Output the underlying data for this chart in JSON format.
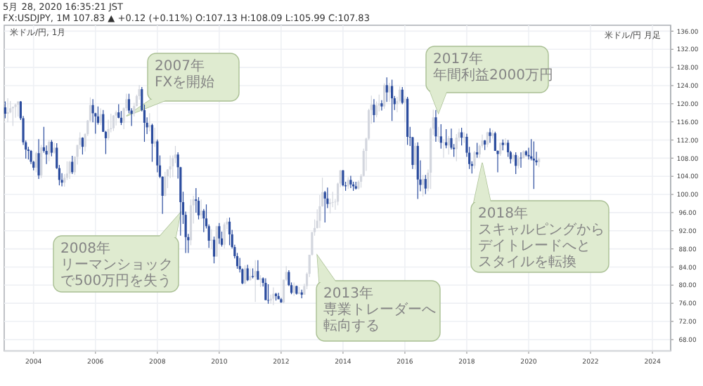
{
  "chart_data": {
    "type": "candlestick",
    "title": "FX:USDJPY, 1M 107.83 ▲ +0.12 (+0.11%) O:107.13 H:108.09 L:105.99 C:107.83",
    "subtitle": "5月 28, 2020 16:35:21 JST",
    "colors": [
      "#2b4c9e",
      "#d3d6de",
      "#d3d6de",
      "#d3d6de",
      "#d3d6de",
      "#d3d6de",
      "#2b4c9e",
      "#2b4c9e",
      "#2b4c9e",
      "#2b4c9e",
      "#2b4c9e",
      "#2b4c9e",
      "#d3d6de",
      "#2b4c9e",
      "#d3d6de",
      "#2b4c9e",
      "#2b4c9e",
      "#d3d6de",
      "#2b4c9e",
      "#d3d6de",
      "#2b4c9e",
      "#2b4c9e",
      "#2b4c9e",
      "#d3d6de",
      "#d3d6de",
      "#d3d6de",
      "#2b4c9e",
      "#d3d6de",
      "#d3d6de",
      "#d3d6de",
      "#2b4c9e",
      "#d3d6de",
      "#d3d6de",
      "#d3d6de",
      "#2b4c9e",
      "#2b4c9e",
      "#2b4c9e",
      "#d3d6de",
      "#2b4c9e",
      "#2b4c9e",
      "#d3d6de",
      "#d3d6de",
      "#d3d6de",
      "#d3d6de",
      "#2b4c9e",
      "#2b4c9e",
      "#d3d6de",
      "#d3d6de",
      "#2b4c9e",
      "#2b4c9e",
      "#d3d6de",
      "#d3d6de",
      "#d3d6de",
      "#2b4c9e",
      "#2b4c9e",
      "#2b4c9e",
      "#d3d6de",
      "#2b4c9e",
      "#d3d6de",
      "#2b4c9e",
      "#2b4c9e",
      "#2b4c9e",
      "#d3d6de",
      "#d3d6de",
      "#d3d6de",
      "#d3d6de",
      "#d3d6de",
      "#2b4c9e",
      "#2b4c9e",
      "#2b4c9e",
      "#2b4c9e",
      "#2b4c9e",
      "#d3d6de",
      "#d3d6de",
      "#2b4c9e",
      "#2b4c9e",
      "#d3d6de",
      "#2b4c9e",
      "#2b4c9e",
      "#2b4c9e",
      "#d3d6de",
      "#2b4c9e",
      "#d3d6de",
      "#2b4c9e",
      "#2b4c9e",
      "#d3d6de",
      "#d3d6de",
      "#2b4c9e",
      "#2b4c9e",
      "#2b4c9e",
      "#2b4c9e",
      "#2b4c9e",
      "#2b4c9e",
      "#d3d6de",
      "#2b4c9e",
      "#d3d6de",
      "#2b4c9e",
      "#d3d6de",
      "#2b4c9e",
      "#d3d6de",
      "#2b4c9e",
      "#2b4c9e",
      "#2b4c9e",
      "#d3d6de",
      "#d3d6de",
      "#2b4c9e",
      "#2b4c9e",
      "#2b4c9e",
      "#d3d6de",
      "#d3d6de",
      "#2b4c9e",
      "#2b4c9e",
      "#d3d6de",
      "#2b4c9e",
      "#d3d6de",
      "#2b4c9e",
      "#d3d6de",
      "#d3d6de",
      "#d3d6de",
      "#d3d6de",
      "#d3d6de",
      "#d3d6de",
      "#d3d6de",
      "#d3d6de",
      "#2b4c9e",
      "#2b4c9e",
      "#d3d6de",
      "#d3d6de",
      "#d3d6de",
      "#d3d6de",
      "#d3d6de",
      "#2b4c9e",
      "#2b4c9e",
      "#d3d6de",
      "#2b4c9e",
      "#2b4c9e",
      "#2b4c9e",
      "#d3d6de",
      "#d3d6de",
      "#d3d6de",
      "#d3d6de",
      "#d3d6de",
      "#d3d6de",
      "#2b4c9e",
      "#d3d6de",
      "#d3d6de",
      "#2b4c9e",
      "#d3d6de",
      "#2b4c9e",
      "#d3d6de",
      "#2b4c9e",
      "#2b4c9e",
      "#d3d6de",
      "#d3d6de",
      "#2b4c9e",
      "#d3d6de",
      "#2b4c9e",
      "#2b4c9e",
      "#2b4c9e",
      "#d3d6de",
      "#2b4c9e",
      "#2b4c9e",
      "#d3d6de",
      "#2b4c9e",
      "#d3d6de",
      "#d3d6de",
      "#d3d6de",
      "#2b4c9e",
      "#d3d6de",
      "#2b4c9e",
      "#d3d6de",
      "#2b4c9e",
      "#d3d6de",
      "#2b4c9e",
      "#2b4c9e",
      "#d3d6de",
      "#d3d6de",
      "#2b4c9e",
      "#d3d6de",
      "#2b4c9e",
      "#2b4c9e",
      "#2b4c9e",
      "#d3d6de",
      "#2b4c9e",
      "#d3d6de",
      "#d3d6de",
      "#2b4c9e",
      "#d3d6de",
      "#2b4c9e",
      "#d3d6de",
      "#2b4c9e",
      "#2b4c9e",
      "#d3d6de",
      "#2b4c9e",
      "#d3d6de",
      "#2b4c9e",
      "#2b4c9e",
      "#d3d6de",
      "#2b4c9e",
      "#d3d6de",
      "#2b4c9e",
      "#d3d6de",
      "#2b4c9e",
      "#2b4c9e",
      "#2b4c9e",
      "#2b4c9e",
      "#2b4c9e",
      "#d3d6de"
    ],
    "grid": true,
    "xlim": [
      "2003-01-20",
      "2024-08-03"
    ],
    "ylim": [
      65.5,
      137.3
    ],
    "xticks": [
      "2004",
      "2006",
      "2008",
      "2010",
      "2012",
      "2014",
      "2016",
      "2018",
      "2020",
      "2022",
      "2024"
    ],
    "yticks": [
      {
        "value": 68,
        "label": "68.00"
      },
      {
        "value": 72,
        "label": "72.00"
      },
      {
        "value": 76,
        "label": "76.00"
      },
      {
        "value": 80,
        "label": "80.00"
      },
      {
        "value": 84,
        "label": "84.00"
      },
      {
        "value": 88,
        "label": "88.00"
      },
      {
        "value": 92,
        "label": "92.00"
      },
      {
        "value": 96,
        "label": "96.00"
      },
      {
        "value": 100,
        "label": "100.00"
      },
      {
        "value": 104,
        "label": "104.00"
      },
      {
        "value": 108,
        "label": "108.00"
      },
      {
        "value": 112,
        "label": "112.00"
      },
      {
        "value": 116,
        "label": "116.00"
      },
      {
        "value": 120,
        "label": "120.00"
      },
      {
        "value": 124,
        "label": "124.00"
      },
      {
        "value": 128,
        "label": "128.00"
      },
      {
        "value": 132,
        "label": "132.00"
      },
      {
        "value": 136,
        "label": "136.00"
      }
    ],
    "annotations": [
      "米ドル/円, 1月",
      "米ドル/円 月足",
      {
        "text": "2007年FXを開始",
        "x": "2007-01",
        "y": 117.3
      },
      {
        "text": "2008年リーマンショックで500万円を失う",
        "x": "2008-10",
        "y": 96
      },
      {
        "text": "2013年専業トレーダーへ転向する",
        "x": "2013-03",
        "y": 86.6
      },
      {
        "text": "2017年年間利益2000万円",
        "x": "2017-02",
        "y": 117.9
      },
      {
        "text": "2018年スキャルピングからデイトレードへとスタイルを転換",
        "x": "2018-07",
        "y": 107
      }
    ],
    "x": [
      "2003-02",
      "2003-03",
      "2003-04",
      "2003-05",
      "2003-06",
      "2003-07",
      "2003-08",
      "2003-09",
      "2003-10",
      "2003-11",
      "2003-12",
      "2004-01",
      "2004-02",
      "2004-03",
      "2004-04",
      "2004-05",
      "2004-06",
      "2004-07",
      "2004-08",
      "2004-09",
      "2004-10",
      "2004-11",
      "2004-12",
      "2005-01",
      "2005-02",
      "2005-03",
      "2005-04",
      "2005-05",
      "2005-06",
      "2005-07",
      "2005-08",
      "2005-09",
      "2005-10",
      "2005-11",
      "2005-12",
      "2006-01",
      "2006-02",
      "2006-03",
      "2006-04",
      "2006-05",
      "2006-06",
      "2006-07",
      "2006-08",
      "2006-09",
      "2006-10",
      "2006-11",
      "2006-12",
      "2007-01",
      "2007-02",
      "2007-03",
      "2007-04",
      "2007-05",
      "2007-06",
      "2007-07",
      "2007-08",
      "2007-09",
      "2007-10",
      "2007-11",
      "2007-12",
      "2008-01",
      "2008-02",
      "2008-03",
      "2008-04",
      "2008-05",
      "2008-06",
      "2008-07",
      "2008-08",
      "2008-09",
      "2008-10",
      "2008-11",
      "2008-12",
      "2009-01",
      "2009-02",
      "2009-03",
      "2009-04",
      "2009-05",
      "2009-06",
      "2009-07",
      "2009-08",
      "2009-09",
      "2009-10",
      "2009-11",
      "2009-12",
      "2010-01",
      "2010-02",
      "2010-03",
      "2010-04",
      "2010-05",
      "2010-06",
      "2010-07",
      "2010-08",
      "2010-09",
      "2010-10",
      "2010-11",
      "2010-12",
      "2011-01",
      "2011-02",
      "2011-03",
      "2011-04",
      "2011-05",
      "2011-06",
      "2011-07",
      "2011-08",
      "2011-09",
      "2011-10",
      "2011-11",
      "2011-12",
      "2012-01",
      "2012-02",
      "2012-03",
      "2012-04",
      "2012-05",
      "2012-06",
      "2012-07",
      "2012-08",
      "2012-09",
      "2012-10",
      "2012-11",
      "2012-12",
      "2013-01",
      "2013-02",
      "2013-03",
      "2013-04",
      "2013-05",
      "2013-06",
      "2013-07",
      "2013-08",
      "2013-09",
      "2013-10",
      "2013-11",
      "2013-12",
      "2014-01",
      "2014-02",
      "2014-03",
      "2014-04",
      "2014-05",
      "2014-06",
      "2014-07",
      "2014-08",
      "2014-09",
      "2014-10",
      "2014-11",
      "2014-12",
      "2015-01",
      "2015-02",
      "2015-03",
      "2015-04",
      "2015-05",
      "2015-06",
      "2015-07",
      "2015-08",
      "2015-09",
      "2015-10",
      "2015-11",
      "2015-12",
      "2016-01",
      "2016-02",
      "2016-03",
      "2016-04",
      "2016-05",
      "2016-06",
      "2016-07",
      "2016-08",
      "2016-09",
      "2016-10",
      "2016-11",
      "2016-12",
      "2017-01",
      "2017-02",
      "2017-03",
      "2017-04",
      "2017-05",
      "2017-06",
      "2017-07",
      "2017-08",
      "2017-09",
      "2017-10",
      "2017-11",
      "2017-12",
      "2018-01",
      "2018-02",
      "2018-03",
      "2018-04",
      "2018-05",
      "2018-06",
      "2018-07",
      "2018-08",
      "2018-09",
      "2018-10",
      "2018-11",
      "2018-12",
      "2019-01",
      "2019-02",
      "2019-03",
      "2019-04",
      "2019-05",
      "2019-06",
      "2019-07",
      "2019-08",
      "2019-09",
      "2019-10",
      "2019-11",
      "2019-12",
      "2020-01",
      "2020-02",
      "2020-03",
      "2020-04",
      "2020-05"
    ],
    "ohlc": [
      [
        119.2,
        120.5,
        116.8,
        117.8
      ],
      [
        117.8,
        121.2,
        115.9,
        118.1
      ],
      [
        118.1,
        120.6,
        117.9,
        119.0
      ],
      [
        119.0,
        119.4,
        115.1,
        119.3
      ],
      [
        119.3,
        120.0,
        116.9,
        119.8
      ],
      [
        119.8,
        120.5,
        117.2,
        120.5
      ],
      [
        120.5,
        120.6,
        116.4,
        116.8
      ],
      [
        116.8,
        117.3,
        110.9,
        111.5
      ],
      [
        111.5,
        111.9,
        107.9,
        109.9
      ],
      [
        109.9,
        110.5,
        107.7,
        109.6
      ],
      [
        109.6,
        109.8,
        106.7,
        107.2
      ],
      [
        107.2,
        107.4,
        105.3,
        105.9
      ],
      [
        105.9,
        109.4,
        104.9,
        109.1
      ],
      [
        109.1,
        112.2,
        103.4,
        104.2
      ],
      [
        104.2,
        110.9,
        103.6,
        110.4
      ],
      [
        110.4,
        114.9,
        109.2,
        109.6
      ],
      [
        109.6,
        110.8,
        106.7,
        108.8
      ],
      [
        108.8,
        112.0,
        107.3,
        111.6
      ],
      [
        111.6,
        112.0,
        108.4,
        109.2
      ],
      [
        109.2,
        111.4,
        109.0,
        110.3
      ],
      [
        110.3,
        111.3,
        105.6,
        105.8
      ],
      [
        105.8,
        106.5,
        102.0,
        103.2
      ],
      [
        103.2,
        104.7,
        101.8,
        102.6
      ],
      [
        102.6,
        104.5,
        101.7,
        103.7
      ],
      [
        103.7,
        107.3,
        103.2,
        104.6
      ],
      [
        104.6,
        107.4,
        103.4,
        107.2
      ],
      [
        107.2,
        108.5,
        104.5,
        104.9
      ],
      [
        104.9,
        108.4,
        104.3,
        108.3
      ],
      [
        108.3,
        110.9,
        106.6,
        110.9
      ],
      [
        110.9,
        113.7,
        110.0,
        112.5
      ],
      [
        112.5,
        112.6,
        108.8,
        110.5
      ],
      [
        110.5,
        113.5,
        109.5,
        113.3
      ],
      [
        113.3,
        116.4,
        112.9,
        116.3
      ],
      [
        116.3,
        121.4,
        116.0,
        119.7
      ],
      [
        119.7,
        121.0,
        115.9,
        117.9
      ],
      [
        117.9,
        118.0,
        113.4,
        117.2
      ],
      [
        117.2,
        119.4,
        115.4,
        115.8
      ],
      [
        115.8,
        119.0,
        115.3,
        117.7
      ],
      [
        117.7,
        118.6,
        113.8,
        113.8
      ],
      [
        113.8,
        114.0,
        108.9,
        112.4
      ],
      [
        112.4,
        116.5,
        112.0,
        114.4
      ],
      [
        114.4,
        117.8,
        113.7,
        114.6
      ],
      [
        114.6,
        117.5,
        114.0,
        117.4
      ],
      [
        117.4,
        118.5,
        115.2,
        118.1
      ],
      [
        118.1,
        119.9,
        116.8,
        116.9
      ],
      [
        116.9,
        118.4,
        115.3,
        115.8
      ],
      [
        115.8,
        119.2,
        114.4,
        119.0
      ],
      [
        119.0,
        122.2,
        118.4,
        121.0
      ],
      [
        121.0,
        122.2,
        117.9,
        118.5
      ],
      [
        118.5,
        119.0,
        115.1,
        117.8
      ],
      [
        117.8,
        120.2,
        117.2,
        119.5
      ],
      [
        119.5,
        122.0,
        119.4,
        121.7
      ],
      [
        121.7,
        124.1,
        120.9,
        123.2
      ],
      [
        123.2,
        123.7,
        118.3,
        118.6
      ],
      [
        118.6,
        119.8,
        111.6,
        115.8
      ],
      [
        115.8,
        117.0,
        113.3,
        114.8
      ],
      [
        114.8,
        117.9,
        113.9,
        115.3
      ],
      [
        115.3,
        115.6,
        107.2,
        111.2
      ],
      [
        111.2,
        114.7,
        110.5,
        111.7
      ],
      [
        111.7,
        112.1,
        104.9,
        106.4
      ],
      [
        106.4,
        108.6,
        103.6,
        103.9
      ],
      [
        103.9,
        104.0,
        95.7,
        99.7
      ],
      [
        99.7,
        105.0,
        99.6,
        104.0
      ],
      [
        104.0,
        105.6,
        101.4,
        105.5
      ],
      [
        105.5,
        108.6,
        103.6,
        106.2
      ],
      [
        106.2,
        108.6,
        103.8,
        108.0
      ],
      [
        108.0,
        110.7,
        106.9,
        108.8
      ],
      [
        108.8,
        109.3,
        103.5,
        106.0
      ],
      [
        106.0,
        106.1,
        90.9,
        98.3
      ],
      [
        98.3,
        100.6,
        93.5,
        95.5
      ],
      [
        95.5,
        96.2,
        87.1,
        90.6
      ],
      [
        90.6,
        91.3,
        87.1,
        89.9
      ],
      [
        89.9,
        98.9,
        88.8,
        97.6
      ],
      [
        97.6,
        99.7,
        93.6,
        98.9
      ],
      [
        98.9,
        101.4,
        96.0,
        98.6
      ],
      [
        98.6,
        99.4,
        94.5,
        95.4
      ],
      [
        95.4,
        98.9,
        94.6,
        96.4
      ],
      [
        96.4,
        96.8,
        91.7,
        94.7
      ],
      [
        94.7,
        97.8,
        92.5,
        93.0
      ],
      [
        93.0,
        93.4,
        88.2,
        89.8
      ],
      [
        89.8,
        92.3,
        88.0,
        90.0
      ],
      [
        90.0,
        90.7,
        84.8,
        86.3
      ],
      [
        86.3,
        93.1,
        86.3,
        93.0
      ],
      [
        93.0,
        93.7,
        89.1,
        90.3
      ],
      [
        90.3,
        91.8,
        88.5,
        88.9
      ],
      [
        88.9,
        93.8,
        88.1,
        93.4
      ],
      [
        93.4,
        94.8,
        92.3,
        94.0
      ],
      [
        94.0,
        94.9,
        88.8,
        91.2
      ],
      [
        91.2,
        92.2,
        88.1,
        88.4
      ],
      [
        88.4,
        88.9,
        85.9,
        86.4
      ],
      [
        86.4,
        87.1,
        83.6,
        84.2
      ],
      [
        84.2,
        86.0,
        82.8,
        83.5
      ],
      [
        83.5,
        83.7,
        80.2,
        80.4
      ],
      [
        80.4,
        84.4,
        80.2,
        83.7
      ],
      [
        83.7,
        84.5,
        80.9,
        81.1
      ],
      [
        81.1,
        83.7,
        81.0,
        82.0
      ],
      [
        82.0,
        83.7,
        81.5,
        81.8
      ],
      [
        81.8,
        85.5,
        76.3,
        83.1
      ],
      [
        83.1,
        85.5,
        81.2,
        81.2
      ],
      [
        81.2,
        82.2,
        79.6,
        81.5
      ],
      [
        81.5,
        81.7,
        79.7,
        80.5
      ],
      [
        80.5,
        81.5,
        76.7,
        76.7
      ],
      [
        76.7,
        80.2,
        75.9,
        76.6
      ],
      [
        76.6,
        77.9,
        75.9,
        77.0
      ],
      [
        77.0,
        79.5,
        75.6,
        78.1
      ],
      [
        78.1,
        78.3,
        76.6,
        77.6
      ],
      [
        77.6,
        78.3,
        76.9,
        76.9
      ],
      [
        76.9,
        77.2,
        76.1,
        76.2
      ],
      [
        76.2,
        81.2,
        76.0,
        81.2
      ],
      [
        81.2,
        84.2,
        80.9,
        82.9
      ],
      [
        82.9,
        83.3,
        79.8,
        80.0
      ],
      [
        80.0,
        80.6,
        78.0,
        78.3
      ],
      [
        78.3,
        80.6,
        77.6,
        79.8
      ],
      [
        79.8,
        79.9,
        77.9,
        78.1
      ],
      [
        78.1,
        79.6,
        78.0,
        78.4
      ],
      [
        78.4,
        79.0,
        77.1,
        77.9
      ],
      [
        77.9,
        80.3,
        77.9,
        79.8
      ],
      [
        79.8,
        82.8,
        79.1,
        82.5
      ],
      [
        82.5,
        86.7,
        81.8,
        86.7
      ],
      [
        86.7,
        91.7,
        86.5,
        91.7
      ],
      [
        91.7,
        94.5,
        90.9,
        92.6
      ],
      [
        92.6,
        96.7,
        92.5,
        94.2
      ],
      [
        94.2,
        99.9,
        92.6,
        97.4
      ],
      [
        97.4,
        103.7,
        97.3,
        100.5
      ],
      [
        100.5,
        100.8,
        93.8,
        99.1
      ],
      [
        99.1,
        101.5,
        97.0,
        97.9
      ],
      [
        97.9,
        99.1,
        95.8,
        98.2
      ],
      [
        98.2,
        100.6,
        97.2,
        98.3
      ],
      [
        98.3,
        99.0,
        96.6,
        98.4
      ],
      [
        98.4,
        102.6,
        97.6,
        102.4
      ],
      [
        102.4,
        105.4,
        101.6,
        105.3
      ],
      [
        105.3,
        105.4,
        101.8,
        102.0
      ],
      [
        102.0,
        102.8,
        100.8,
        101.8
      ],
      [
        101.8,
        103.8,
        101.2,
        103.2
      ],
      [
        103.2,
        104.1,
        101.4,
        102.2
      ],
      [
        102.2,
        102.8,
        100.8,
        101.8
      ],
      [
        101.8,
        102.8,
        101.1,
        101.3
      ],
      [
        101.3,
        103.1,
        101.1,
        102.8
      ],
      [
        102.8,
        104.5,
        101.5,
        104.1
      ],
      [
        104.1,
        110.1,
        104.0,
        109.6
      ],
      [
        109.6,
        112.5,
        105.2,
        112.3
      ],
      [
        112.3,
        118.9,
        112.0,
        118.6
      ],
      [
        118.6,
        121.8,
        115.6,
        119.8
      ],
      [
        119.8,
        121.0,
        115.9,
        117.5
      ],
      [
        117.5,
        120.5,
        117.0,
        119.6
      ],
      [
        119.6,
        122.0,
        118.3,
        120.1
      ],
      [
        120.1,
        120.8,
        118.5,
        119.4
      ],
      [
        119.4,
        124.5,
        118.9,
        124.1
      ],
      [
        124.1,
        125.8,
        120.4,
        122.5
      ],
      [
        122.5,
        124.6,
        120.4,
        123.9
      ],
      [
        123.9,
        125.3,
        116.2,
        121.2
      ],
      [
        121.2,
        121.7,
        118.6,
        119.9
      ],
      [
        119.9,
        121.5,
        118.1,
        120.6
      ],
      [
        120.6,
        123.8,
        120.2,
        123.1
      ],
      [
        123.1,
        123.7,
        119.9,
        120.2
      ],
      [
        120.2,
        121.7,
        115.9,
        121.1
      ],
      [
        121.1,
        121.5,
        110.9,
        112.7
      ],
      [
        112.7,
        114.9,
        110.7,
        112.6
      ],
      [
        112.6,
        112.7,
        105.6,
        106.5
      ],
      [
        106.5,
        111.4,
        105.5,
        110.7
      ],
      [
        110.7,
        111.5,
        99.0,
        103.3
      ],
      [
        103.3,
        107.5,
        100.7,
        102.1
      ],
      [
        102.1,
        104.3,
        99.6,
        103.4
      ],
      [
        103.4,
        104.3,
        100.1,
        101.3
      ],
      [
        101.3,
        105.5,
        100.7,
        104.8
      ],
      [
        104.8,
        114.8,
        101.2,
        114.5
      ],
      [
        114.5,
        118.7,
        113.1,
        117.0
      ],
      [
        117.0,
        118.6,
        111.6,
        112.8
      ],
      [
        112.8,
        114.9,
        111.6,
        112.8
      ],
      [
        112.8,
        115.5,
        110.1,
        111.4
      ],
      [
        111.4,
        112.2,
        108.1,
        111.5
      ],
      [
        111.5,
        114.4,
        110.2,
        110.8
      ],
      [
        110.8,
        112.9,
        108.8,
        112.4
      ],
      [
        112.4,
        114.5,
        109.9,
        110.3
      ],
      [
        110.3,
        111.1,
        108.3,
        110.0
      ],
      [
        110.0,
        113.3,
        107.3,
        112.5
      ],
      [
        112.5,
        114.5,
        111.7,
        113.7
      ],
      [
        113.7,
        114.7,
        110.8,
        112.5
      ],
      [
        112.5,
        113.7,
        111.4,
        112.7
      ],
      [
        112.7,
        113.4,
        108.3,
        109.2
      ],
      [
        109.2,
        110.5,
        105.6,
        106.7
      ],
      [
        106.7,
        107.3,
        104.6,
        106.3
      ],
      [
        106.3,
        109.6,
        105.7,
        109.3
      ],
      [
        109.3,
        111.4,
        108.1,
        108.8
      ],
      [
        108.8,
        111.0,
        108.1,
        110.7
      ],
      [
        110.7,
        113.2,
        110.3,
        111.9
      ],
      [
        111.9,
        112.0,
        109.8,
        111.0
      ],
      [
        111.0,
        113.8,
        110.4,
        113.7
      ],
      [
        113.7,
        114.6,
        111.4,
        112.9
      ],
      [
        112.9,
        114.2,
        112.3,
        113.5
      ],
      [
        113.5,
        113.8,
        109.6,
        109.6
      ],
      [
        109.6,
        109.7,
        104.9,
        108.9
      ],
      [
        108.9,
        111.4,
        108.5,
        111.4
      ],
      [
        111.4,
        112.1,
        109.7,
        110.9
      ],
      [
        110.9,
        112.4,
        110.8,
        111.4
      ],
      [
        111.4,
        112.0,
        108.3,
        109.3
      ],
      [
        109.3,
        109.6,
        106.8,
        107.8
      ],
      [
        107.8,
        109.0,
        107.2,
        108.7
      ],
      [
        108.7,
        109.3,
        104.5,
        106.3
      ],
      [
        106.3,
        108.5,
        105.7,
        108.1
      ],
      [
        108.1,
        109.3,
        105.9,
        108.0
      ],
      [
        108.0,
        109.7,
        107.9,
        109.5
      ],
      [
        109.5,
        109.7,
        108.4,
        108.7
      ],
      [
        108.7,
        110.3,
        107.7,
        108.4
      ],
      [
        108.4,
        112.2,
        107.5,
        107.9
      ],
      [
        107.9,
        111.7,
        101.2,
        107.5
      ],
      [
        107.5,
        109.4,
        106.4,
        107.1
      ],
      [
        107.13,
        108.09,
        105.99,
        107.83
      ]
    ]
  }
}
